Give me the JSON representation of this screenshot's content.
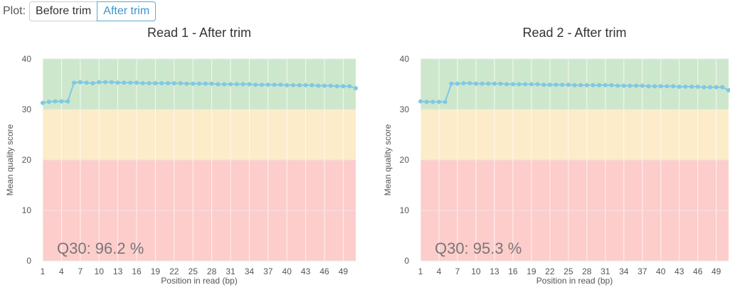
{
  "plot_selector": {
    "label": "Plot:",
    "options": [
      "Before trim",
      "After trim"
    ],
    "selected": "After trim"
  },
  "colors": {
    "good_band": "#cde7cc",
    "warn_band": "#fdecc9",
    "bad_band": "#fdcdcb",
    "line": "#80c8e4",
    "active_accent": "#3b95c8"
  },
  "chart_data": [
    {
      "type": "line",
      "title": "Read 1 - After trim",
      "xlabel": "Position in read (bp)",
      "ylabel": "Mean quality score",
      "xlim": [
        1,
        51
      ],
      "ylim": [
        0,
        40
      ],
      "x_ticks": [
        "1",
        "4",
        "7",
        "10",
        "13",
        "16",
        "19",
        "22",
        "25",
        "28",
        "31",
        "34",
        "37",
        "40",
        "43",
        "46",
        "49"
      ],
      "y_ticks": [
        "0",
        "10",
        "20",
        "30",
        "40"
      ],
      "bands": [
        {
          "from": 30,
          "to": 40,
          "quality": "good"
        },
        {
          "from": 20,
          "to": 30,
          "quality": "warning"
        },
        {
          "from": 0,
          "to": 20,
          "quality": "poor"
        }
      ],
      "annotation": "Q30: 96.2 %",
      "x": [
        1,
        2,
        3,
        4,
        5,
        6,
        7,
        8,
        9,
        10,
        11,
        12,
        13,
        14,
        15,
        16,
        17,
        18,
        19,
        20,
        21,
        22,
        23,
        24,
        25,
        26,
        27,
        28,
        29,
        30,
        31,
        32,
        33,
        34,
        35,
        36,
        37,
        38,
        39,
        40,
        41,
        42,
        43,
        44,
        45,
        46,
        47,
        48,
        49,
        50,
        51
      ],
      "y": [
        31.3,
        31.5,
        31.6,
        31.6,
        31.6,
        35.3,
        35.4,
        35.3,
        35.2,
        35.4,
        35.4,
        35.4,
        35.3,
        35.3,
        35.3,
        35.3,
        35.2,
        35.2,
        35.2,
        35.2,
        35.2,
        35.2,
        35.2,
        35.1,
        35.1,
        35.1,
        35.1,
        35.1,
        35.0,
        35.0,
        35.0,
        35.0,
        35.0,
        35.0,
        34.9,
        34.9,
        34.9,
        34.9,
        34.9,
        34.8,
        34.8,
        34.8,
        34.8,
        34.8,
        34.7,
        34.7,
        34.7,
        34.6,
        34.6,
        34.6,
        34.2
      ]
    },
    {
      "type": "line",
      "title": "Read 2 - After trim",
      "xlabel": "Position in read (bp)",
      "ylabel": "Mean quality score",
      "xlim": [
        1,
        51
      ],
      "ylim": [
        0,
        40
      ],
      "x_ticks": [
        "1",
        "4",
        "7",
        "10",
        "13",
        "16",
        "19",
        "22",
        "25",
        "28",
        "31",
        "34",
        "37",
        "40",
        "43",
        "46",
        "49"
      ],
      "y_ticks": [
        "0",
        "10",
        "20",
        "30",
        "40"
      ],
      "bands": [
        {
          "from": 30,
          "to": 40,
          "quality": "good"
        },
        {
          "from": 20,
          "to": 30,
          "quality": "warning"
        },
        {
          "from": 0,
          "to": 20,
          "quality": "poor"
        }
      ],
      "annotation": "Q30: 95.3 %",
      "x": [
        1,
        2,
        3,
        4,
        5,
        6,
        7,
        8,
        9,
        10,
        11,
        12,
        13,
        14,
        15,
        16,
        17,
        18,
        19,
        20,
        21,
        22,
        23,
        24,
        25,
        26,
        27,
        28,
        29,
        30,
        31,
        32,
        33,
        34,
        35,
        36,
        37,
        38,
        39,
        40,
        41,
        42,
        43,
        44,
        45,
        46,
        47,
        48,
        49,
        50,
        51
      ],
      "y": [
        31.6,
        31.5,
        31.5,
        31.5,
        31.5,
        35.1,
        35.1,
        35.2,
        35.2,
        35.1,
        35.1,
        35.1,
        35.1,
        35.1,
        35.0,
        35.0,
        35.0,
        35.0,
        35.0,
        35.0,
        34.9,
        34.9,
        34.9,
        34.9,
        34.9,
        34.8,
        34.8,
        34.8,
        34.8,
        34.8,
        34.8,
        34.8,
        34.7,
        34.7,
        34.7,
        34.7,
        34.7,
        34.6,
        34.6,
        34.6,
        34.6,
        34.6,
        34.5,
        34.5,
        34.5,
        34.5,
        34.4,
        34.4,
        34.4,
        34.4,
        33.8
      ]
    }
  ]
}
